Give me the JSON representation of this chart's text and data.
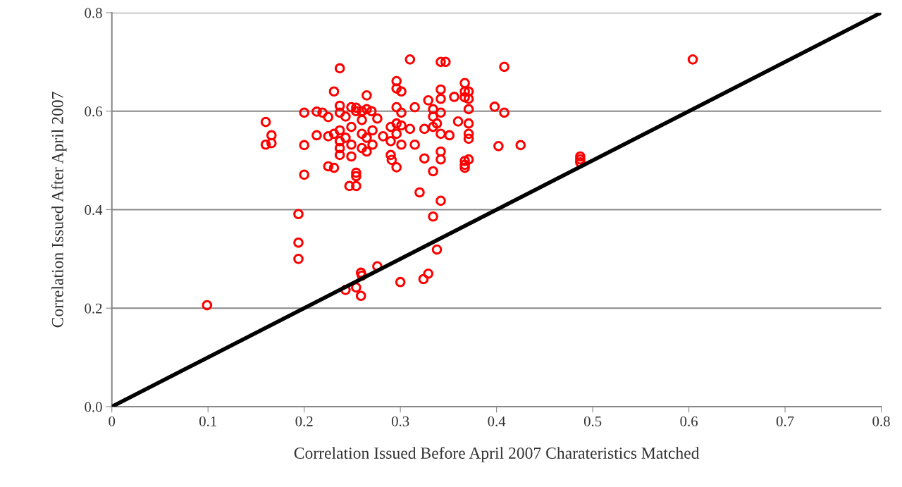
{
  "chart_data": {
    "type": "scatter",
    "xlabel": "Correlation Issued Before April 2007 Charateristics Matched",
    "ylabel": "Correlation Issued After April 2007",
    "xlim": [
      0,
      0.8
    ],
    "ylim": [
      0,
      0.8
    ],
    "xticks": [
      0,
      0.1,
      0.2,
      0.3,
      0.4,
      0.5,
      0.6,
      0.7,
      0.8
    ],
    "yticks": [
      {
        "value": 0,
        "label": "0.0"
      },
      0.2,
      0.4,
      0.6,
      0.8
    ],
    "grid": "y",
    "marker": "circle",
    "series": [
      {
        "color": "#ff0000",
        "x": [
          0.099,
          0.16,
          0.16,
          0.166,
          0.166,
          0.2,
          0.2,
          0.2,
          0.194,
          0.194,
          0.194,
          0.213,
          0.219,
          0.213,
          0.225,
          0.231,
          0.237,
          0.237,
          0.237,
          0.225,
          0.231,
          0.237,
          0.237,
          0.237,
          0.237,
          0.225,
          0.231,
          0.243,
          0.243,
          0.249,
          0.249,
          0.249,
          0.249,
          0.247,
          0.254,
          0.254,
          0.254,
          0.254,
          0.254,
          0.26,
          0.26,
          0.26,
          0.265,
          0.265,
          0.265,
          0.265,
          0.271,
          0.271,
          0.276,
          0.282,
          0.29,
          0.29,
          0.29,
          0.291,
          0.296,
          0.296,
          0.296,
          0.296,
          0.296,
          0.296,
          0.301,
          0.301,
          0.301,
          0.301,
          0.31,
          0.31,
          0.315,
          0.315,
          0.32,
          0.325,
          0.325,
          0.329,
          0.334,
          0.334,
          0.334,
          0.334,
          0.334,
          0.338,
          0.342,
          0.347,
          0.342,
          0.342,
          0.342,
          0.342,
          0.342,
          0.342,
          0.342,
          0.338,
          0.351,
          0.356,
          0.36,
          0.367,
          0.367,
          0.367,
          0.367,
          0.367,
          0.367,
          0.371,
          0.371,
          0.371,
          0.371,
          0.371,
          0.371,
          0.371,
          0.398,
          0.402,
          0.408,
          0.408,
          0.425,
          0.487,
          0.487,
          0.487,
          0.604,
          0.276,
          0.259,
          0.26,
          0.243,
          0.254,
          0.259,
          0.3,
          0.324,
          0.329,
          0.27,
          0.26
        ],
        "values": [
          0.206,
          0.578,
          0.532,
          0.551,
          0.535,
          0.597,
          0.531,
          0.471,
          0.391,
          0.333,
          0.3,
          0.599,
          0.597,
          0.551,
          0.588,
          0.64,
          0.687,
          0.611,
          0.597,
          0.549,
          0.554,
          0.561,
          0.539,
          0.525,
          0.511,
          0.488,
          0.485,
          0.589,
          0.546,
          0.608,
          0.568,
          0.532,
          0.508,
          0.448,
          0.607,
          0.6,
          0.475,
          0.468,
          0.448,
          0.6,
          0.554,
          0.525,
          0.604,
          0.632,
          0.546,
          0.518,
          0.561,
          0.532,
          0.585,
          0.549,
          0.568,
          0.539,
          0.511,
          0.501,
          0.661,
          0.646,
          0.608,
          0.575,
          0.554,
          0.486,
          0.64,
          0.597,
          0.571,
          0.532,
          0.705,
          0.564,
          0.608,
          0.532,
          0.435,
          0.564,
          0.504,
          0.622,
          0.604,
          0.589,
          0.568,
          0.478,
          0.386,
          0.575,
          0.7,
          0.7,
          0.644,
          0.625,
          0.597,
          0.554,
          0.518,
          0.502,
          0.418,
          0.319,
          0.551,
          0.629,
          0.579,
          0.657,
          0.64,
          0.628,
          0.499,
          0.491,
          0.485,
          0.64,
          0.625,
          0.604,
          0.575,
          0.554,
          0.544,
          0.502,
          0.609,
          0.529,
          0.69,
          0.597,
          0.531,
          0.508,
          0.502,
          0.496,
          0.705,
          0.285,
          0.272,
          0.266,
          0.237,
          0.242,
          0.225,
          0.253,
          0.259,
          0.27,
          0.6,
          0.582
        ]
      },
      {
        "type": "line",
        "color": "#000000",
        "marker": "none",
        "x": [
          0,
          0.8
        ],
        "values": [
          0,
          0.8
        ]
      }
    ]
  }
}
